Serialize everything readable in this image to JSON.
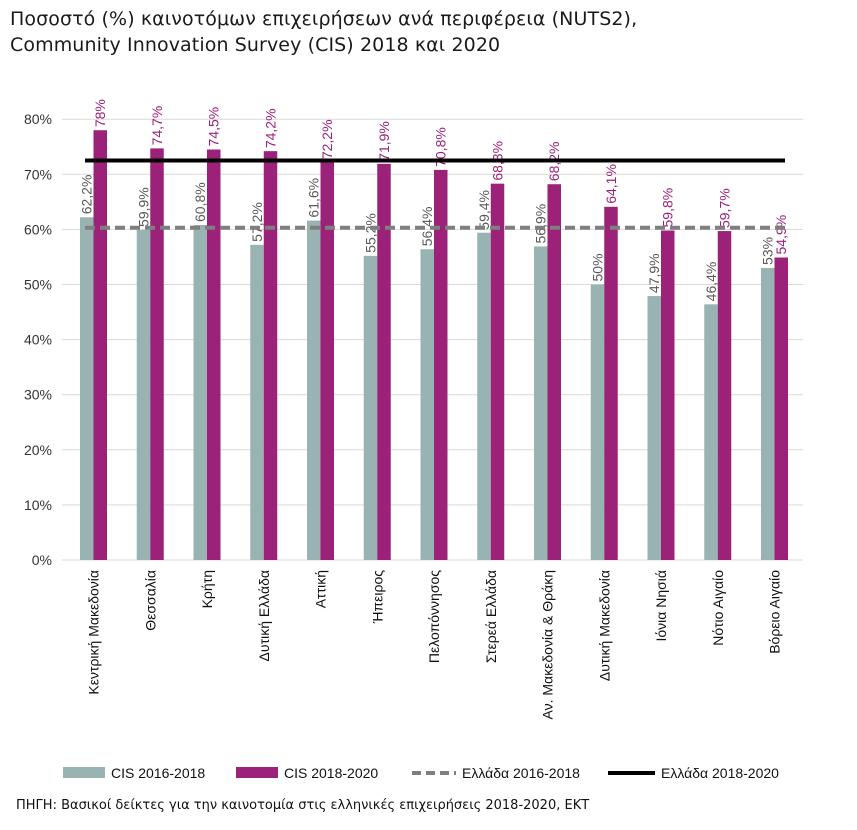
{
  "title_line1": "Ποσοστό (%) καινοτόμων επιχειρήσεων ανά περιφέρεια (NUTS2),",
  "title_line2": "Community Innovation Survey (CIS) 2018 και 2020",
  "source": "ΠΗΓΗ: Βασικοί δείκτες για την καινοτομία στις ελληνικές επιχειρήσεις 2018-2020, ΕΚΤ",
  "colors": {
    "cis_2016_2018": "#98b3b2",
    "cis_2018_2020": "#9b2278",
    "greece_2016_2018": "#7f7f7f",
    "greece_2018_2020": "#000000",
    "grid": "#d9d9d9",
    "label_2016": "#595959",
    "label_2018": "#9b2278"
  },
  "chart_data": {
    "type": "bar",
    "categories": [
      "Κεντρική Μακεδονία",
      "Θεσσαλία",
      "Κρήτη",
      "Δυτική Ελλάδα",
      "Αττική",
      "Ήπειρος",
      "Πελοπόννησος",
      "Στερεά Ελλάδα",
      "Αν. Μακεδονία & Θράκη",
      "Δυτική Μακεδονία",
      "Ιόνια Νησιά",
      "Νότιο Αιγαίο",
      "Βόρειο Αιγαίο"
    ],
    "series": [
      {
        "name": "CIS 2016-2018",
        "values": [
          62.2,
          59.9,
          60.8,
          57.2,
          61.6,
          55.2,
          56.4,
          59.4,
          56.9,
          50,
          47.9,
          46.4,
          53
        ],
        "labels": [
          "62,2%",
          "59,9%",
          "60,8%",
          "57,2%",
          "61,6%",
          "55,2%",
          "56,4%",
          "59,4%",
          "56,9%",
          "50%",
          "47,9%",
          "46,4%",
          "53%"
        ]
      },
      {
        "name": "CIS 2018-2020",
        "values": [
          78,
          74.7,
          74.5,
          74.2,
          72.2,
          71.9,
          70.8,
          68.3,
          68.2,
          64.1,
          59.8,
          59.7,
          54.9
        ],
        "labels": [
          "78%",
          "74,7%",
          "74,5%",
          "74,2%",
          "72,2%",
          "71,9%",
          "70,8%",
          "68,3%",
          "68,2%",
          "64,1%",
          "59,8%",
          "59,7%",
          "54,9%"
        ]
      }
    ],
    "reference_lines": [
      {
        "name": "Ελλάδα 2016-2018",
        "value": 60.3,
        "style": "dashed"
      },
      {
        "name": "Ελλάδα 2018-2020",
        "value": 72.5,
        "style": "solid"
      }
    ],
    "yticks": [
      "0%",
      "10%",
      "20%",
      "30%",
      "40%",
      "50%",
      "60%",
      "70%",
      "80%"
    ],
    "ylim": [
      0,
      80
    ],
    "grid": true,
    "legend_position": "bottom"
  }
}
